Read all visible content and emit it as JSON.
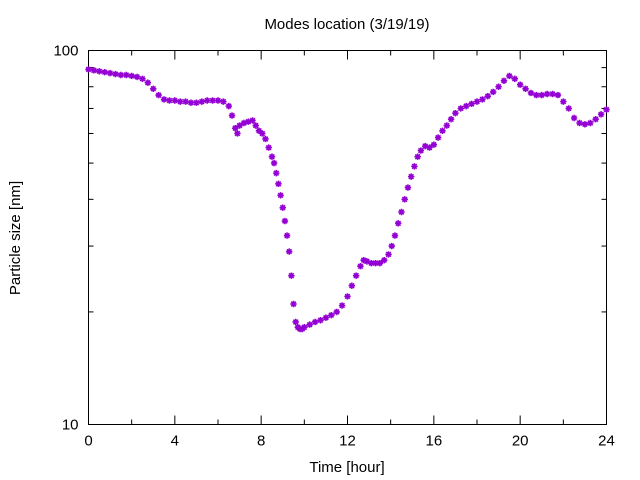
{
  "chart_data": {
    "type": "scatter",
    "title": "Modes location (3/19/19)",
    "xlabel": "Time [hour]",
    "ylabel": "Particle size [nm]",
    "xlim": [
      0,
      24
    ],
    "ylim": [
      10,
      100
    ],
    "yscale": "log",
    "grid": false,
    "xticks": [
      0,
      4,
      8,
      12,
      16,
      20,
      24
    ],
    "xtick_labels": [
      "0",
      "4",
      "8",
      "12",
      "16",
      "20",
      "24"
    ],
    "yticks": [
      10,
      100
    ],
    "ytick_labels": [
      "10",
      "100"
    ],
    "series": [
      {
        "color": "#9400d3",
        "marker": "asterisk",
        "x": [
          0.0,
          0.25,
          0.5,
          0.75,
          1.0,
          1.25,
          1.5,
          1.75,
          2.0,
          2.25,
          2.5,
          2.75,
          3.0,
          3.25,
          3.5,
          3.75,
          4.0,
          4.25,
          4.5,
          4.75,
          5.0,
          5.25,
          5.5,
          5.75,
          6.0,
          6.25,
          6.5,
          6.65,
          6.8,
          6.9,
          7.0,
          7.2,
          7.4,
          7.6,
          7.75,
          7.9,
          8.05,
          8.2,
          8.35,
          8.5,
          8.6,
          8.7,
          8.8,
          8.9,
          9.0,
          9.1,
          9.2,
          9.3,
          9.4,
          9.5,
          9.6,
          9.7,
          9.8,
          9.9,
          10.0,
          10.25,
          10.5,
          10.75,
          11.0,
          11.25,
          11.5,
          11.75,
          12.0,
          12.2,
          12.4,
          12.6,
          12.75,
          12.9,
          13.1,
          13.3,
          13.5,
          13.7,
          13.9,
          14.05,
          14.2,
          14.35,
          14.5,
          14.65,
          14.8,
          14.95,
          15.1,
          15.25,
          15.4,
          15.6,
          15.8,
          16.0,
          16.2,
          16.4,
          16.6,
          16.8,
          17.0,
          17.25,
          17.5,
          17.75,
          18.0,
          18.25,
          18.5,
          18.75,
          19.0,
          19.25,
          19.5,
          19.75,
          20.0,
          20.25,
          20.5,
          20.75,
          21.0,
          21.25,
          21.5,
          21.75,
          22.0,
          22.25,
          22.5,
          22.75,
          23.0,
          23.25,
          23.5,
          23.75,
          24.0
        ],
        "y": [
          89,
          88.5,
          88,
          87.5,
          87,
          86.5,
          86,
          86,
          85.5,
          85,
          84,
          82,
          79,
          76,
          74,
          73.5,
          73.5,
          73,
          73,
          72.5,
          72.5,
          73,
          73.5,
          73.5,
          73.5,
          73,
          71,
          67,
          62,
          60,
          63,
          64,
          64.5,
          65,
          63,
          61,
          60,
          58,
          55,
          52,
          50,
          47,
          44,
          41,
          38,
          35,
          32,
          29,
          25,
          21,
          18.8,
          18.2,
          18,
          18,
          18.2,
          18.5,
          18.8,
          19,
          19.3,
          19.6,
          20,
          20.8,
          22,
          23.5,
          25,
          26.5,
          27.5,
          27.3,
          27,
          27,
          27,
          27.5,
          28.5,
          30,
          32,
          34.5,
          37,
          40,
          43,
          46,
          49,
          52,
          54,
          55.5,
          55,
          56,
          58.5,
          61,
          63,
          65.5,
          68,
          70,
          71,
          72,
          73,
          74,
          75.5,
          77.5,
          80,
          83,
          85.5,
          84,
          81,
          79,
          77,
          76,
          76,
          76.5,
          76.5,
          76,
          73,
          70,
          66,
          64,
          63.5,
          64,
          65.5,
          67.5,
          69.5
        ]
      }
    ]
  }
}
